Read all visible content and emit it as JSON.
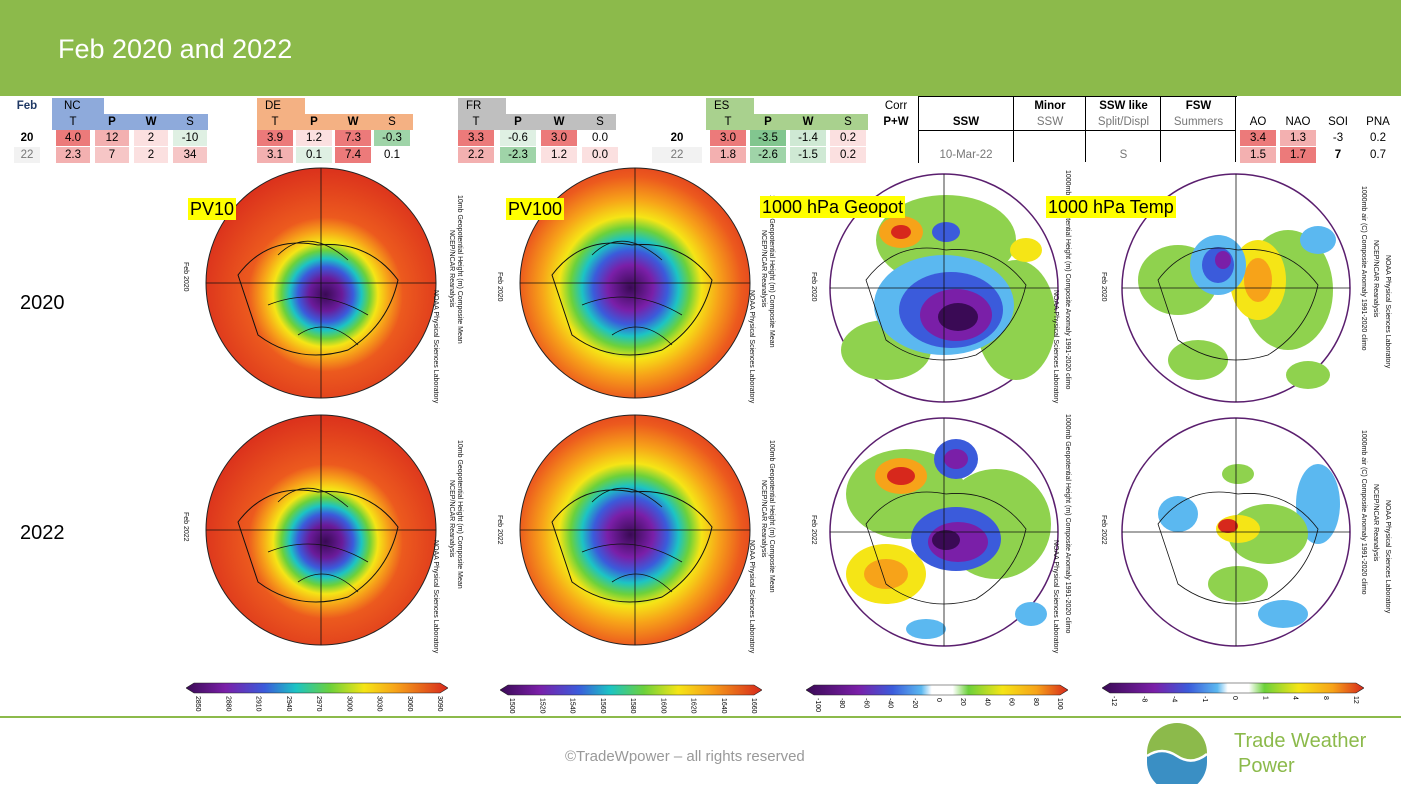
{
  "slide": {
    "title": "Feb 2020 and 2022"
  },
  "table": {
    "corner": "Feb",
    "row_labels": {
      "r20": "20",
      "r22": "22"
    },
    "groups": [
      {
        "name": "NC",
        "cols": [
          "T",
          "P",
          "W",
          "S"
        ],
        "r20": [
          "4.0",
          "12",
          "2",
          "-10"
        ],
        "r22": [
          "2.3",
          "7",
          "2",
          "34"
        ]
      },
      {
        "name": "DE",
        "cols": [
          "T",
          "P",
          "W",
          "S"
        ],
        "r20": [
          "3.9",
          "1.2",
          "7.3",
          "-0.3"
        ],
        "r22": [
          "3.1",
          "0.1",
          "7.4",
          "0.1"
        ]
      },
      {
        "name": "FR",
        "cols": [
          "T",
          "P",
          "W",
          "S"
        ],
        "r20": [
          "3.3",
          "-0.6",
          "3.0",
          "0.0"
        ],
        "r22": [
          "2.2",
          "-2.3",
          "1.2",
          "0.0"
        ]
      },
      {
        "name": "ES",
        "cols": [
          "T",
          "P",
          "W",
          "S"
        ],
        "r20": [
          "3.0",
          "-3.5",
          "-1.4",
          "0.2"
        ],
        "r22": [
          "1.8",
          "-2.6",
          "-1.5",
          "0.2"
        ]
      }
    ],
    "es_row_labels": {
      "r20": "20",
      "r22": "22"
    },
    "corr": {
      "line1": "Corr",
      "line2": "P+W"
    },
    "ssw": {
      "head": "SSW",
      "r22": "10-Mar-22"
    },
    "minor": {
      "head1": "Minor",
      "head2": "SSW"
    },
    "ssw_like": {
      "head1": "SSW like",
      "head2": "Split/Displ",
      "r22": "S"
    },
    "fsw": {
      "head1": "FSW",
      "head2": "Summers"
    },
    "indices": {
      "cols": [
        "AO",
        "NAO",
        "SOI",
        "PNA"
      ],
      "r20": [
        "3.4",
        "1.3",
        "-3",
        "0.2"
      ],
      "r22": [
        "1.5",
        "1.7",
        "7",
        "0.7"
      ]
    }
  },
  "years": {
    "y2020": "2020",
    "y2022": "2022"
  },
  "map_labels": {
    "pv10": "PV10",
    "pv100": "PV100",
    "geopot": "1000 hPa Geopot",
    "temp": "1000 hPa Temp"
  },
  "map_text": {
    "feb2020": "Feb 2020",
    "feb2022": "Feb 2022",
    "pv10_a": "NCEP/NCAR Reanalysis",
    "pv10_b": "10mb Geopotential Height (m) Composite Mean",
    "pv100_b": "100mb Geopotential Height (m) Composite Mean",
    "geo_b": "1000mb Geopotential Height (m) Composite Anomaly 1991-2020 climo",
    "tmp_b": "1000mb air (C) Composite Anomaly 1991-2020 climo",
    "noaa": "NOAA Physical Sciences Laboratory"
  },
  "colorbars": {
    "pv10": [
      "2850",
      "2880",
      "2910",
      "2940",
      "2970",
      "3000",
      "3030",
      "3060",
      "3090"
    ],
    "pv100": [
      "1500",
      "1520",
      "1540",
      "1560",
      "1580",
      "1600",
      "1620",
      "1640",
      "1660"
    ],
    "geopot": [
      "-100",
      "-80",
      "-60",
      "-40",
      "-20",
      "0",
      "20",
      "40",
      "60",
      "80",
      "100"
    ],
    "temp": [
      "-12",
      "-8",
      "-4",
      "-1",
      "0",
      "1",
      "4",
      "8",
      "12"
    ]
  },
  "footer": {
    "copyright": "©TradeWpower – all rights reserved",
    "brand_line1": "Trade Weather",
    "brand_line2": "Power"
  }
}
